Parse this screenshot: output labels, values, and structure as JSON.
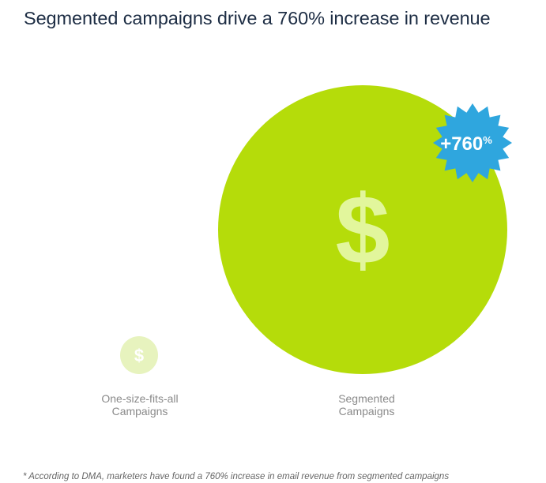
{
  "title": "Segmented campaigns drive a 760% increase in revenue",
  "chart_data": {
    "type": "bubble",
    "title": "Segmented campaigns drive a 760% increase in revenue",
    "categories": [
      "One-size-fits-all Campaigns",
      "Segmented Campaigns"
    ],
    "series": [
      {
        "values": [
          1,
          8.6
        ],
        "labels": [
          [
            "One-size-fits-all",
            "Campaigns"
          ],
          [
            "Segmented",
            "Campaigns"
          ]
        ]
      }
    ],
    "annotation": "+760",
    "annotation_suffix": "%",
    "icon": "dollar-sign-icon",
    "icon_glyph": "$",
    "colors": {
      "segmented": "#b5dc0a",
      "one_size": "#e7f3be",
      "icon_on_large": "#e2f69c",
      "icon_on_small": "#ffffff",
      "badge": "#2fa6de",
      "badge_text": "#ffffff",
      "label": "#8a8a8a"
    }
  },
  "footnote": "* According to DMA, marketers have found a 760% increase in email revenue from segmented campaigns"
}
